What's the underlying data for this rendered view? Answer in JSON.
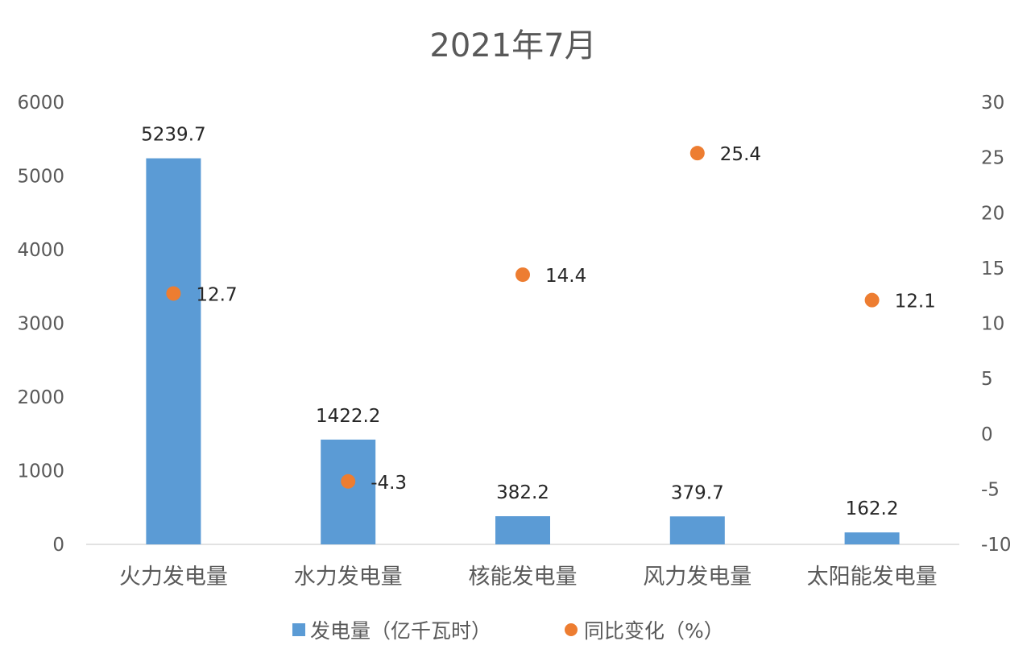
{
  "chart_data": {
    "type": "bar",
    "title": "2021年7月",
    "categories": [
      "火力发电量",
      "水力发电量",
      "核能发电量",
      "风力发电量",
      "太阳能发电量"
    ],
    "series": [
      {
        "name": "发电量（亿千瓦时）",
        "type": "bar",
        "axis": "left",
        "color": "#5B9BD5",
        "values": [
          5239.7,
          1422.2,
          382.2,
          379.7,
          162.2
        ],
        "labels": [
          "5239.7",
          "1422.2",
          "382.2",
          "379.7",
          "162.2"
        ]
      },
      {
        "name": "同比变化（%）",
        "type": "scatter",
        "axis": "right",
        "color": "#ED7D31",
        "values": [
          12.7,
          -4.3,
          14.4,
          25.4,
          12.1
        ],
        "labels": [
          "12.7",
          "-4.3",
          "14.4",
          "25.4",
          "12.1"
        ]
      }
    ],
    "y_left": {
      "min": 0,
      "max": 6000,
      "ticks": [
        0,
        1000,
        2000,
        3000,
        4000,
        5000,
        6000
      ]
    },
    "y_right": {
      "min": -10,
      "max": 30,
      "ticks": [
        -10,
        -5,
        0,
        5,
        10,
        15,
        20,
        25,
        30
      ]
    },
    "grid": false,
    "legend": "bottom"
  }
}
